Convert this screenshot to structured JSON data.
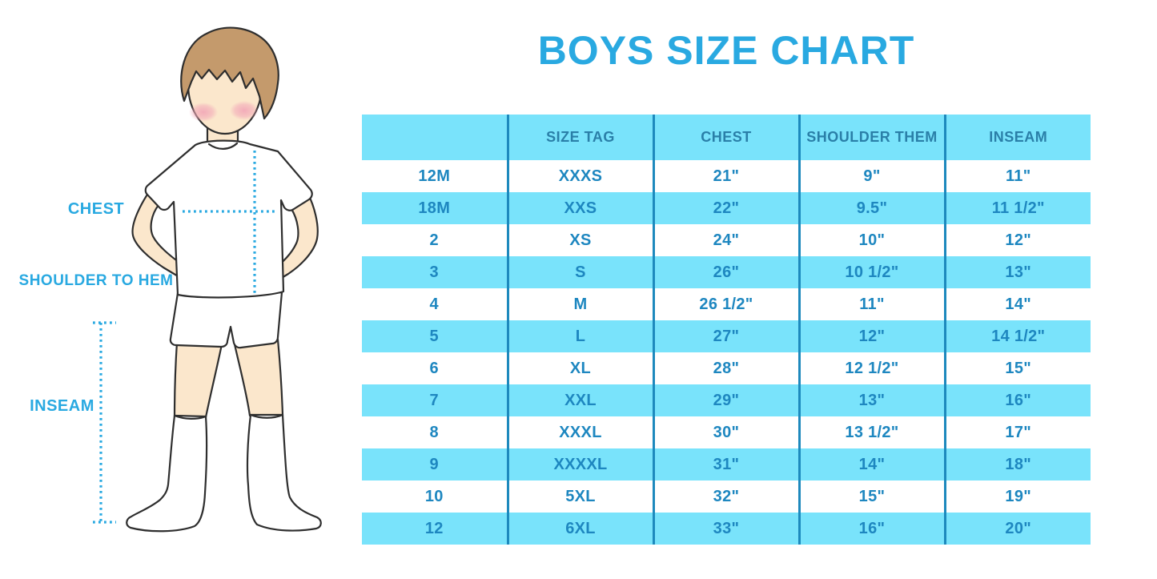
{
  "title": "BOYS SIZE CHART",
  "figure": {
    "labels": {
      "chest": "CHEST",
      "shoulder_to_hem": "SHOULDER TO HEM",
      "inseam": "INSEAM"
    }
  },
  "colors": {
    "accent_blue": "#29A9E1",
    "band_cyan": "#79E3FB",
    "grid_line_blue": "#1D89BD",
    "header_text_blue": "#2A7FA8",
    "cell_text_blue": "#1E87C0",
    "skin": "#FBE7CC",
    "hair_brown": "#C49A6C",
    "blush_pink": "#F2A9B8",
    "outline_dark": "#2E2E2E"
  },
  "chart_data": {
    "type": "table",
    "title": "BOYS SIZE CHART",
    "columns": [
      "",
      "SIZE TAG",
      "CHEST",
      "SHOULDER THEM",
      "INSEAM"
    ],
    "rows": [
      [
        "12M",
        "XXXS",
        "21\"",
        "9\"",
        "11\""
      ],
      [
        "18M",
        "XXS",
        "22\"",
        "9.5\"",
        "11 1/2\""
      ],
      [
        "2",
        "XS",
        "24\"",
        "10\"",
        "12\""
      ],
      [
        "3",
        "S",
        "26\"",
        "10 1/2\"",
        "13\""
      ],
      [
        "4",
        "M",
        "26 1/2\"",
        "11\"",
        "14\""
      ],
      [
        "5",
        "L",
        "27\"",
        "12\"",
        "14 1/2\""
      ],
      [
        "6",
        "XL",
        "28\"",
        "12 1/2\"",
        "15\""
      ],
      [
        "7",
        "XXL",
        "29\"",
        "13\"",
        "16\""
      ],
      [
        "8",
        "XXXL",
        "30\"",
        "13 1/2\"",
        "17\""
      ],
      [
        "9",
        "XXXXL",
        "31\"",
        "14\"",
        "18\""
      ],
      [
        "10",
        "5XL",
        "32\"",
        "15\"",
        "19\""
      ],
      [
        "12",
        "6XL",
        "33\"",
        "16\"",
        "20\""
      ]
    ]
  }
}
